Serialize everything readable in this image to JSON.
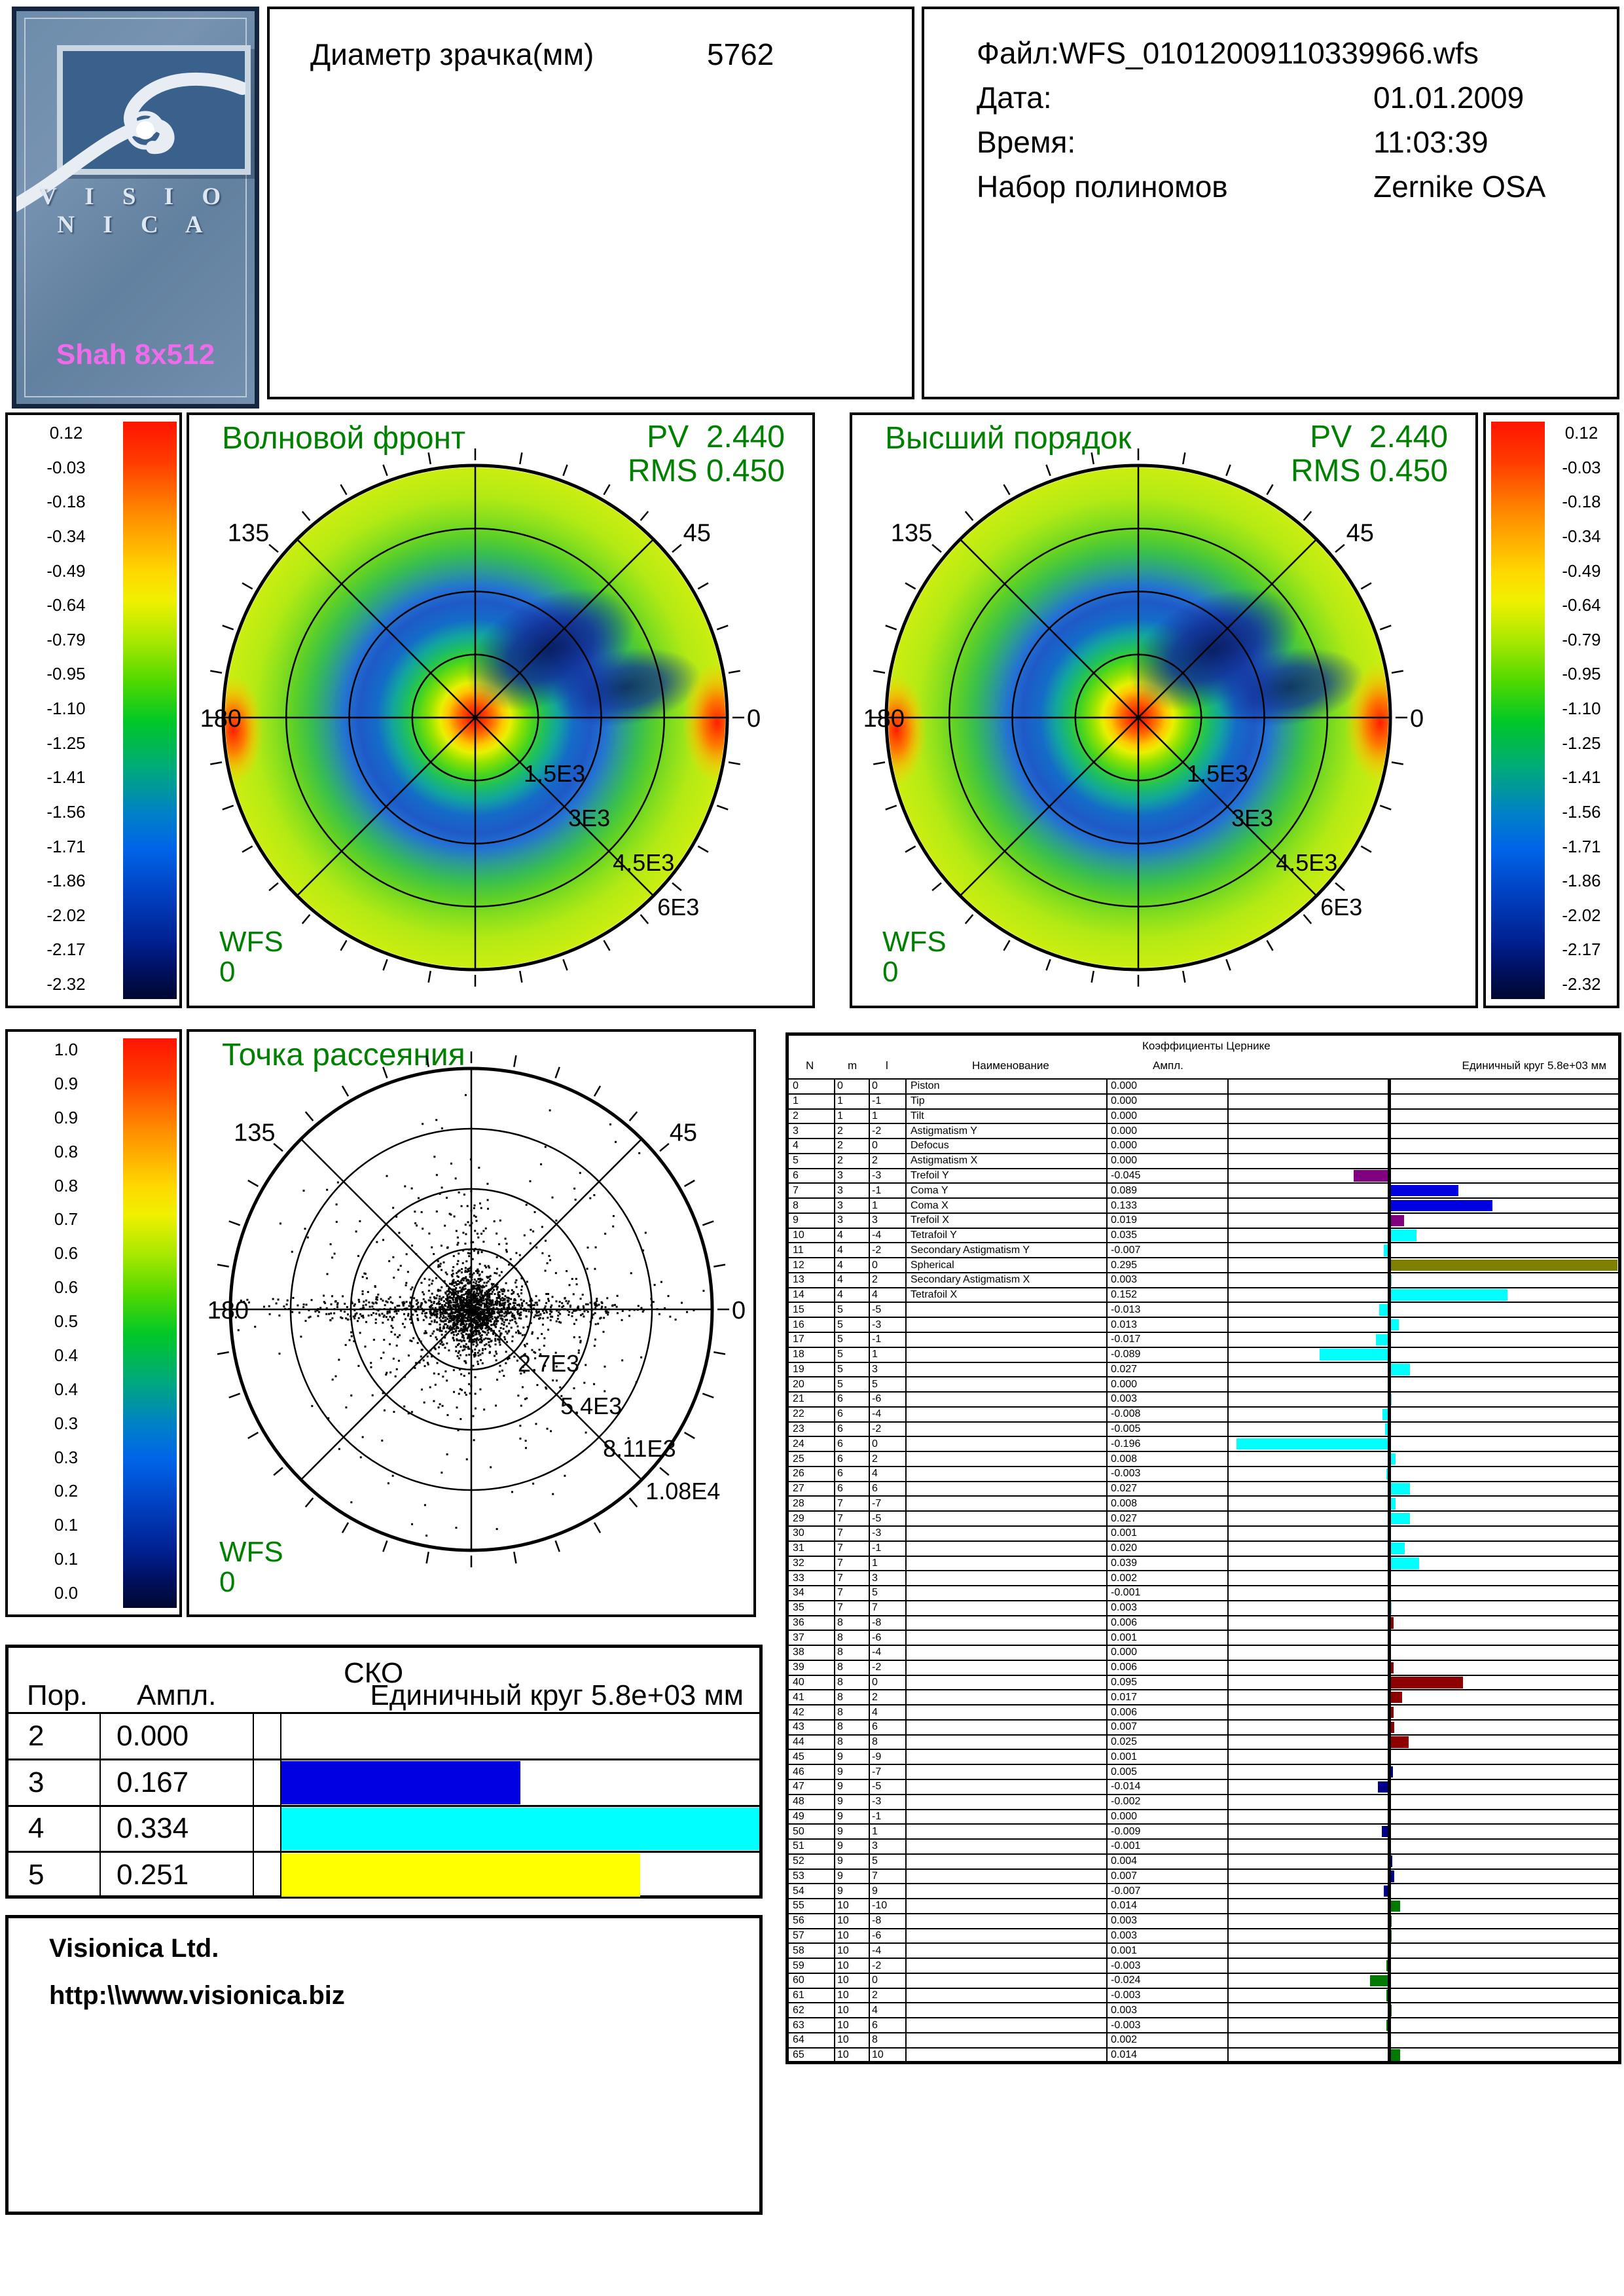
{
  "logo": {
    "brand": "V I S I O N I C A",
    "brand_plain": "VISIONICA",
    "device": "Shah 8x512"
  },
  "header": {
    "pupil_label": "Диаметр зрачка(мм)",
    "pupil_value": "5762",
    "file_line": "Файл:WFS_01012009110339966.wfs",
    "date_label": "Дата:",
    "date_value": "01.01.2009",
    "time_label": "Время:",
    "time_value": "11:03:39",
    "poly_label": "Набор полиномов",
    "poly_value": "Zernike OSA"
  },
  "colorbar_wavefront": {
    "ticks": [
      "0.12",
      "-0.03",
      "-0.18",
      "-0.34",
      "-0.49",
      "-0.64",
      "-0.79",
      "-0.95",
      "-1.10",
      "-1.25",
      "-1.41",
      "-1.56",
      "-1.71",
      "-1.86",
      "-2.02",
      "-2.17",
      "-2.32"
    ]
  },
  "colorbar_scatter": {
    "ticks": [
      "1.0",
      "0.9",
      "0.9",
      "0.8",
      "0.8",
      "0.7",
      "0.6",
      "0.6",
      "0.5",
      "0.4",
      "0.4",
      "0.3",
      "0.3",
      "0.2",
      "0.1",
      "0.1",
      "0.0"
    ]
  },
  "plots": {
    "wavefront": {
      "title": "Волновой фронт",
      "pv_label": "PV",
      "pv": "2.440",
      "rms_label": "RMS",
      "rms": "0.450",
      "wfs_label": "WFS",
      "wfs_value": "0",
      "angles": [
        "135",
        "45",
        "180",
        "0"
      ],
      "rings": [
        "1.5E3",
        "3E3",
        "4.5E3",
        "6E3"
      ]
    },
    "higher_order": {
      "title": "Высший порядок",
      "pv_label": "PV",
      "pv": "2.440",
      "rms_label": "RMS",
      "rms": "0.450",
      "wfs_label": "WFS",
      "wfs_value": "0",
      "angles": [
        "135",
        "45",
        "180",
        "0"
      ],
      "rings": [
        "1.5E3",
        "3E3",
        "4.5E3",
        "6E3"
      ]
    },
    "scatter": {
      "title": "Точка рассеяния",
      "wfs_label": "WFS",
      "wfs_value": "0",
      "angles": [
        "135",
        "45",
        "180",
        "0"
      ],
      "rings": [
        "2.7E3",
        "5.4E3",
        "8.11E3",
        "1.08E4"
      ],
      "cloud": {
        "seed": 987654321,
        "components": [
          {
            "n": 1100,
            "sx": 26,
            "sy": 26
          },
          {
            "n": 550,
            "sx": 150,
            "sy": 10
          },
          {
            "n": 420,
            "sx": 85,
            "sy": 70
          },
          {
            "n": 260,
            "sx": 175,
            "sy": 150
          },
          {
            "n": 90,
            "sx": 8,
            "sy": 95
          }
        ]
      }
    }
  },
  "zernike_table": {
    "title": "Коэффициенты Цернике",
    "columns": [
      "N",
      "m",
      "l",
      "Наименование",
      "Ампл."
    ],
    "unit_label": "Единичный круг 5.8e+03 мм",
    "rows": [
      [
        0,
        0,
        0,
        "Piston",
        "0.000",
        ""
      ],
      [
        1,
        1,
        -1,
        "Tip",
        "0.000",
        ""
      ],
      [
        2,
        1,
        1,
        "Tilt",
        "0.000",
        ""
      ],
      [
        3,
        2,
        -2,
        "Astigmatism Y",
        "0.000",
        ""
      ],
      [
        4,
        2,
        0,
        "Defocus",
        "0.000",
        ""
      ],
      [
        5,
        2,
        2,
        "Astigmatism X",
        "0.000",
        ""
      ],
      [
        6,
        3,
        -3,
        "Trefoil Y",
        "-0.045",
        "#800080"
      ],
      [
        7,
        3,
        -1,
        "Coma Y",
        "0.089",
        "#0000E0"
      ],
      [
        8,
        3,
        1,
        "Coma X",
        "0.133",
        "#0000E0"
      ],
      [
        9,
        3,
        3,
        "Trefoil X",
        "0.019",
        "#800080"
      ],
      [
        10,
        4,
        -4,
        "Tetrafoil Y",
        "0.035",
        "#00FFFF"
      ],
      [
        11,
        4,
        -2,
        "Secondary Astigmatism Y",
        "-0.007",
        "#00FFFF"
      ],
      [
        12,
        4,
        0,
        "Spherical",
        "0.295",
        "#808000"
      ],
      [
        13,
        4,
        2,
        "Secondary Astigmatism X",
        "0.003",
        "#00FFFF"
      ],
      [
        14,
        4,
        4,
        "Tetrafoil X",
        "0.152",
        "#00FFFF"
      ],
      [
        15,
        5,
        -5,
        "",
        "-0.013",
        "#00FFFF"
      ],
      [
        16,
        5,
        -3,
        "",
        "0.013",
        "#00FFFF"
      ],
      [
        17,
        5,
        -1,
        "",
        "-0.017",
        "#00FFFF"
      ],
      [
        18,
        5,
        1,
        "",
        "-0.089",
        "#00FFFF"
      ],
      [
        19,
        5,
        3,
        "",
        "0.027",
        "#00FFFF"
      ],
      [
        20,
        5,
        5,
        "",
        "0.000",
        "#00FFFF"
      ],
      [
        21,
        6,
        -6,
        "",
        "0.003",
        "#00FFFF"
      ],
      [
        22,
        6,
        -4,
        "",
        "-0.008",
        "#00FFFF"
      ],
      [
        23,
        6,
        -2,
        "",
        "-0.005",
        "#00FFFF"
      ],
      [
        24,
        6,
        0,
        "",
        "-0.196",
        "#00FFFF"
      ],
      [
        25,
        6,
        2,
        "",
        "0.008",
        "#00FFFF"
      ],
      [
        26,
        6,
        4,
        "",
        "-0.003",
        "#00FFFF"
      ],
      [
        27,
        6,
        6,
        "",
        "0.027",
        "#00FFFF"
      ],
      [
        28,
        7,
        -7,
        "",
        "0.008",
        "#00FFFF"
      ],
      [
        29,
        7,
        -5,
        "",
        "0.027",
        "#00FFFF"
      ],
      [
        30,
        7,
        -3,
        "",
        "0.001",
        "#00FFFF"
      ],
      [
        31,
        7,
        -1,
        "",
        "0.020",
        "#00FFFF"
      ],
      [
        32,
        7,
        1,
        "",
        "0.039",
        "#00FFFF"
      ],
      [
        33,
        7,
        3,
        "",
        "0.002",
        "#00FFFF"
      ],
      [
        34,
        7,
        5,
        "",
        "-0.001",
        "#00FFFF"
      ],
      [
        35,
        7,
        7,
        "",
        "0.003",
        "#00FFFF"
      ],
      [
        36,
        8,
        -8,
        "",
        "0.006",
        "#8E0000"
      ],
      [
        37,
        8,
        -6,
        "",
        "0.001",
        "#8E0000"
      ],
      [
        38,
        8,
        -4,
        "",
        "0.000",
        "#8E0000"
      ],
      [
        39,
        8,
        -2,
        "",
        "0.006",
        "#8E0000"
      ],
      [
        40,
        8,
        0,
        "",
        "0.095",
        "#8E0000"
      ],
      [
        41,
        8,
        2,
        "",
        "0.017",
        "#8E0000"
      ],
      [
        42,
        8,
        4,
        "",
        "0.006",
        "#8E0000"
      ],
      [
        43,
        8,
        6,
        "",
        "0.007",
        "#8E0000"
      ],
      [
        44,
        8,
        8,
        "",
        "0.025",
        "#8E0000"
      ],
      [
        45,
        9,
        -9,
        "",
        "0.001",
        "#000088"
      ],
      [
        46,
        9,
        -7,
        "",
        "0.005",
        "#000088"
      ],
      [
        47,
        9,
        -5,
        "",
        "-0.014",
        "#000088"
      ],
      [
        48,
        9,
        -3,
        "",
        "-0.002",
        "#000088"
      ],
      [
        49,
        9,
        -1,
        "",
        "0.000",
        "#000088"
      ],
      [
        50,
        9,
        1,
        "",
        "-0.009",
        "#000088"
      ],
      [
        51,
        9,
        3,
        "",
        "-0.001",
        "#000088"
      ],
      [
        52,
        9,
        5,
        "",
        "0.004",
        "#000088"
      ],
      [
        53,
        9,
        7,
        "",
        "0.007",
        "#000088"
      ],
      [
        54,
        9,
        9,
        "",
        "-0.007",
        "#000088"
      ],
      [
        55,
        10,
        -10,
        "",
        "0.014",
        "#007A00"
      ],
      [
        56,
        10,
        -8,
        "",
        "0.003",
        "#007A00"
      ],
      [
        57,
        10,
        -6,
        "",
        "0.003",
        "#007A00"
      ],
      [
        58,
        10,
        -4,
        "",
        "0.001",
        "#007A00"
      ],
      [
        59,
        10,
        -2,
        "",
        "-0.003",
        "#007A00"
      ],
      [
        60,
        10,
        0,
        "",
        "-0.024",
        "#007A00"
      ],
      [
        61,
        10,
        2,
        "",
        "-0.003",
        "#007A00"
      ],
      [
        62,
        10,
        4,
        "",
        "0.003",
        "#007A00"
      ],
      [
        63,
        10,
        6,
        "",
        "-0.003",
        "#007A00"
      ],
      [
        64,
        10,
        8,
        "",
        "0.002",
        "#007A00"
      ],
      [
        65,
        10,
        10,
        "",
        "0.014",
        "#007A00"
      ]
    ]
  },
  "sko_table": {
    "title": "СКО",
    "order_label": "Пор.",
    "ampl_label": "Ампл.",
    "unit_label": "Единичный круг 5.8e+03 мм",
    "rows": [
      [
        "2",
        "0.000",
        ""
      ],
      [
        "3",
        "0.167",
        "#0000E0"
      ],
      [
        "4",
        "0.334",
        "#00FFFF"
      ],
      [
        "5",
        "0.251",
        "#FFFF00"
      ]
    ]
  },
  "footer": {
    "company": "Visionica Ltd.",
    "url": "http:\\\\www.visionica.biz"
  }
}
